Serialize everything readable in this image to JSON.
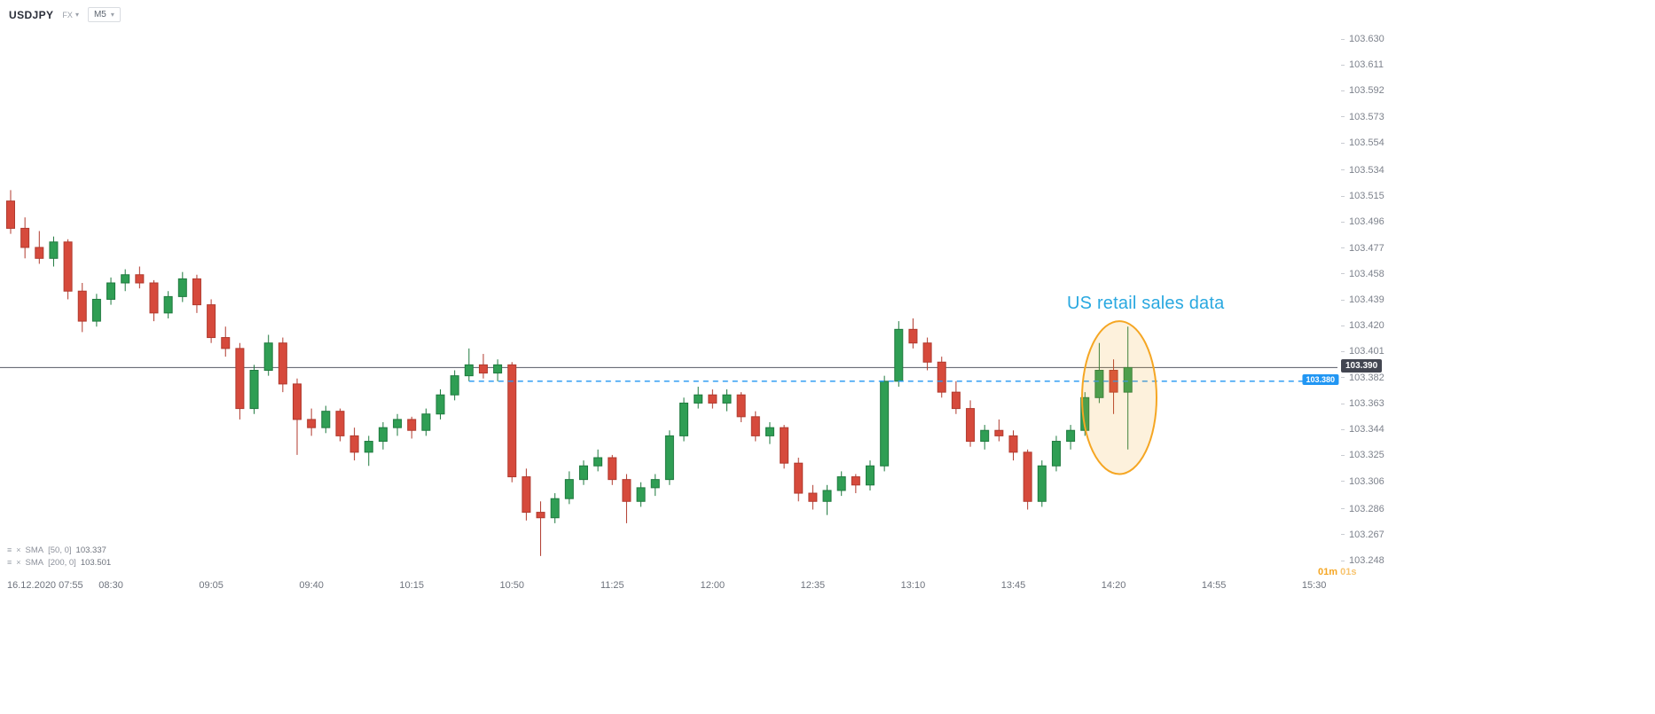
{
  "header": {
    "symbol": "USDJPY",
    "market_type": "FX",
    "timeframe": "M5"
  },
  "annotation": {
    "text": "US retail sales data",
    "color": "#29a8e0"
  },
  "countdown": {
    "minutes": "01m",
    "seconds": "01s",
    "color": "#f5a623"
  },
  "price_labels": {
    "current": {
      "text": "103.390",
      "price": 103.39,
      "bg": "#434651"
    },
    "alert": {
      "text": "103.380",
      "price": 103.38,
      "bg": "#2196f3"
    }
  },
  "indicators": [
    {
      "name": "SMA",
      "params": "[50, 0]",
      "value": "103.337"
    },
    {
      "name": "SMA",
      "params": "[200, 0]",
      "value": "103.501"
    }
  ],
  "chart_data": {
    "type": "candlestick",
    "title": "USDJPY M5 16.12.2020",
    "y_axis": {
      "top_price": 103.63,
      "bottom_price": 103.248,
      "ticks": [
        "103.630",
        "103.611",
        "103.592",
        "103.573",
        "103.554",
        "103.534",
        "103.515",
        "103.496",
        "103.477",
        "103.458",
        "103.439",
        "103.420",
        "103.401",
        "103.382",
        "103.363",
        "103.344",
        "103.325",
        "103.306",
        "103.286",
        "103.267",
        "103.248"
      ]
    },
    "x_axis": {
      "labels": [
        "16.12.2020 07:55",
        "08:30",
        "09:05",
        "09:40",
        "10:15",
        "10:50",
        "11:25",
        "12:00",
        "12:35",
        "13:10",
        "13:45",
        "14:20",
        "14:55",
        "15:30"
      ]
    },
    "colors": {
      "up": "#2f9e54",
      "up_border": "#1f7a3f",
      "down": "#d64a3c",
      "down_border": "#b03a2e"
    },
    "lines": [
      {
        "style": "solid",
        "price": 103.39,
        "color": "#555a64",
        "from": "07:55"
      },
      {
        "style": "dashed",
        "price": 103.38,
        "color": "#2196f3",
        "from": "10:35"
      }
    ],
    "highlight": {
      "shape": "ellipse",
      "center_time": "14:22",
      "center_price": 103.368,
      "half_width_minutes": 13,
      "half_height_price": 0.056,
      "stroke": "#f5a623",
      "fill_opacity": 0.16
    },
    "candles": [
      [
        "07:55",
        103.512,
        103.52,
        103.488,
        103.492
      ],
      [
        "08:00",
        103.492,
        103.5,
        103.47,
        103.478
      ],
      [
        "08:05",
        103.478,
        103.49,
        103.466,
        103.47
      ],
      [
        "08:10",
        103.47,
        103.486,
        103.464,
        103.482
      ],
      [
        "08:15",
        103.482,
        103.484,
        103.44,
        103.446
      ],
      [
        "08:20",
        103.446,
        103.452,
        103.416,
        103.424
      ],
      [
        "08:25",
        103.424,
        103.444,
        103.42,
        103.44
      ],
      [
        "08:30",
        103.44,
        103.456,
        103.436,
        103.452
      ],
      [
        "08:35",
        103.452,
        103.462,
        103.446,
        103.458
      ],
      [
        "08:40",
        103.458,
        103.464,
        103.448,
        103.452
      ],
      [
        "08:45",
        103.452,
        103.454,
        103.424,
        103.43
      ],
      [
        "08:50",
        103.43,
        103.446,
        103.426,
        103.442
      ],
      [
        "08:55",
        103.442,
        103.46,
        103.438,
        103.455
      ],
      [
        "09:00",
        103.455,
        103.458,
        103.43,
        103.436
      ],
      [
        "09:05",
        103.436,
        103.44,
        103.408,
        103.412
      ],
      [
        "09:10",
        103.412,
        103.42,
        103.398,
        103.404
      ],
      [
        "09:15",
        103.404,
        103.408,
        103.352,
        103.36
      ],
      [
        "09:20",
        103.36,
        103.392,
        103.356,
        103.388
      ],
      [
        "09:25",
        103.388,
        103.414,
        103.384,
        103.408
      ],
      [
        "09:30",
        103.408,
        103.412,
        103.372,
        103.378
      ],
      [
        "09:35",
        103.378,
        103.382,
        103.326,
        103.352
      ],
      [
        "09:40",
        103.352,
        103.36,
        103.34,
        103.346
      ],
      [
        "09:45",
        103.346,
        103.362,
        103.342,
        103.358
      ],
      [
        "09:50",
        103.358,
        103.36,
        103.336,
        103.34
      ],
      [
        "09:55",
        103.34,
        103.346,
        103.322,
        103.328
      ],
      [
        "10:00",
        103.328,
        103.34,
        103.318,
        103.336
      ],
      [
        "10:05",
        103.336,
        103.35,
        103.33,
        103.346
      ],
      [
        "10:10",
        103.346,
        103.356,
        103.34,
        103.352
      ],
      [
        "10:15",
        103.352,
        103.354,
        103.338,
        103.344
      ],
      [
        "10:20",
        103.344,
        103.36,
        103.34,
        103.356
      ],
      [
        "10:25",
        103.356,
        103.374,
        103.352,
        103.37
      ],
      [
        "10:30",
        103.37,
        103.388,
        103.366,
        103.384
      ],
      [
        "10:35",
        103.384,
        103.404,
        103.38,
        103.392
      ],
      [
        "10:40",
        103.392,
        103.4,
        103.382,
        103.386
      ],
      [
        "10:45",
        103.386,
        103.396,
        103.38,
        103.392
      ],
      [
        "10:50",
        103.392,
        103.394,
        103.306,
        103.31
      ],
      [
        "10:55",
        103.31,
        103.316,
        103.278,
        103.284
      ],
      [
        "11:00",
        103.284,
        103.292,
        103.252,
        103.28
      ],
      [
        "11:05",
        103.28,
        103.298,
        103.276,
        103.294
      ],
      [
        "11:10",
        103.294,
        103.314,
        103.29,
        103.308
      ],
      [
        "11:15",
        103.308,
        103.322,
        103.304,
        103.318
      ],
      [
        "11:20",
        103.318,
        103.33,
        103.314,
        103.324
      ],
      [
        "11:25",
        103.324,
        103.326,
        103.304,
        103.308
      ],
      [
        "11:30",
        103.308,
        103.312,
        103.276,
        103.292
      ],
      [
        "11:35",
        103.292,
        103.306,
        103.288,
        103.302
      ],
      [
        "11:40",
        103.302,
        103.312,
        103.296,
        103.308
      ],
      [
        "11:45",
        103.308,
        103.344,
        103.304,
        103.34
      ],
      [
        "11:50",
        103.34,
        103.368,
        103.336,
        103.364
      ],
      [
        "11:55",
        103.364,
        103.376,
        103.36,
        103.37
      ],
      [
        "12:00",
        103.37,
        103.374,
        103.36,
        103.364
      ],
      [
        "12:05",
        103.364,
        103.374,
        103.358,
        103.37
      ],
      [
        "12:10",
        103.37,
        103.372,
        103.35,
        103.354
      ],
      [
        "12:15",
        103.354,
        103.358,
        103.336,
        103.34
      ],
      [
        "12:20",
        103.34,
        103.35,
        103.334,
        103.346
      ],
      [
        "12:25",
        103.346,
        103.348,
        103.316,
        103.32
      ],
      [
        "12:30",
        103.32,
        103.324,
        103.292,
        103.298
      ],
      [
        "12:35",
        103.298,
        103.304,
        103.286,
        103.292
      ],
      [
        "12:40",
        103.292,
        103.304,
        103.282,
        103.3
      ],
      [
        "12:45",
        103.3,
        103.314,
        103.296,
        103.31
      ],
      [
        "12:50",
        103.31,
        103.312,
        103.298,
        103.304
      ],
      [
        "12:55",
        103.304,
        103.322,
        103.3,
        103.318
      ],
      [
        "13:00",
        103.318,
        103.384,
        103.314,
        103.38
      ],
      [
        "13:05",
        103.38,
        103.424,
        103.376,
        103.418
      ],
      [
        "13:10",
        103.418,
        103.426,
        103.404,
        103.408
      ],
      [
        "13:15",
        103.408,
        103.412,
        103.388,
        103.394
      ],
      [
        "13:20",
        103.394,
        103.398,
        103.368,
        103.372
      ],
      [
        "13:25",
        103.372,
        103.38,
        103.356,
        103.36
      ],
      [
        "13:30",
        103.36,
        103.366,
        103.332,
        103.336
      ],
      [
        "13:35",
        103.336,
        103.348,
        103.33,
        103.344
      ],
      [
        "13:40",
        103.344,
        103.352,
        103.336,
        103.34
      ],
      [
        "13:45",
        103.34,
        103.344,
        103.322,
        103.328
      ],
      [
        "13:50",
        103.328,
        103.33,
        103.286,
        103.292
      ],
      [
        "13:55",
        103.292,
        103.322,
        103.288,
        103.318
      ],
      [
        "14:00",
        103.318,
        103.34,
        103.314,
        103.336
      ],
      [
        "14:05",
        103.336,
        103.348,
        103.33,
        103.344
      ],
      [
        "14:10",
        103.344,
        103.372,
        103.34,
        103.368
      ],
      [
        "14:15",
        103.368,
        103.408,
        103.364,
        103.388
      ],
      [
        "14:20",
        103.388,
        103.396,
        103.356,
        103.372
      ],
      [
        "14:25",
        103.372,
        103.42,
        103.33,
        103.39
      ]
    ]
  }
}
